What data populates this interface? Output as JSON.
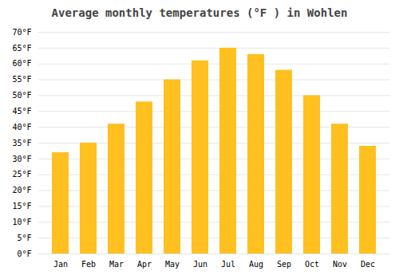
{
  "chart_data": {
    "type": "bar",
    "title": "Average monthly temperatures (°F ) in Wohlen",
    "categories": [
      "Jan",
      "Feb",
      "Mar",
      "Apr",
      "May",
      "Jun",
      "Jul",
      "Aug",
      "Sep",
      "Oct",
      "Nov",
      "Dec"
    ],
    "values": [
      32,
      35,
      41,
      48,
      55,
      61,
      65,
      63,
      58,
      50,
      41,
      34
    ],
    "color": "#FFC020",
    "ylim": [
      0,
      70
    ],
    "yticks": [
      {
        "value": 0,
        "label": "0°F"
      },
      {
        "value": 5,
        "label": "5°F"
      },
      {
        "value": 10,
        "label": "10°F"
      },
      {
        "value": 15,
        "label": "15°F"
      },
      {
        "value": 20,
        "label": "20°F"
      },
      {
        "value": 25,
        "label": "25°F"
      },
      {
        "value": 30,
        "label": "30°F"
      },
      {
        "value": 35,
        "label": "35°F"
      },
      {
        "value": 40,
        "label": "40°F"
      },
      {
        "value": 45,
        "label": "45°F"
      },
      {
        "value": 50,
        "label": "50°F"
      },
      {
        "value": 55,
        "label": "55°F"
      },
      {
        "value": 60,
        "label": "60°F"
      },
      {
        "value": 65,
        "label": "65°F"
      },
      {
        "value": 70,
        "label": "70°F"
      }
    ],
    "grid": true
  }
}
